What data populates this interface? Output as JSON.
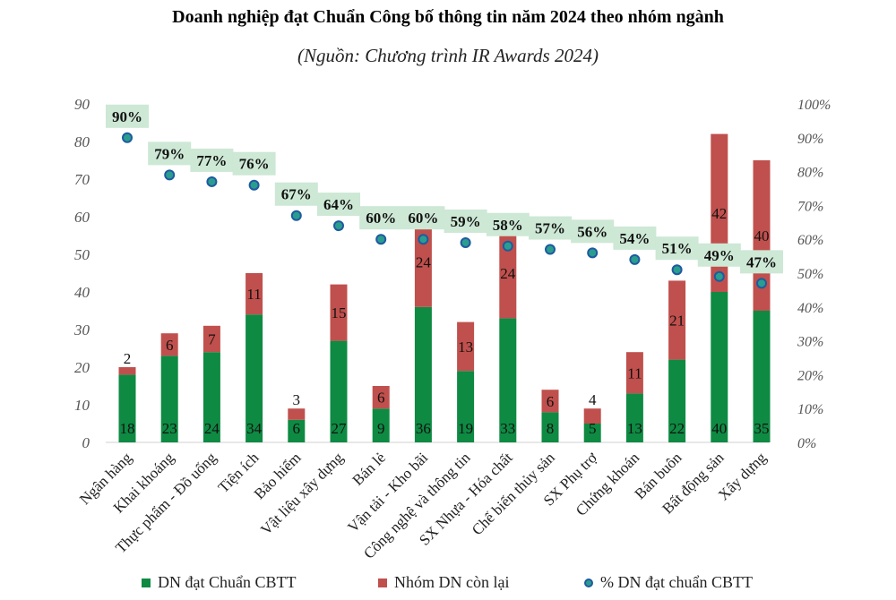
{
  "title": "Doanh nghiệp đạt Chuẩn Công bố thông tin năm 2024 theo nhóm ngành",
  "subtitle": "(Nguồn: Chương trình IR Awards 2024)",
  "colors": {
    "achieved": "#0e8a43",
    "remaining": "#c0504d",
    "dot_fill": "#2a9d8f",
    "dot_border": "#1e5aa0",
    "label_box": "#cde8d5"
  },
  "chart_data": {
    "type": "bar",
    "stacked": true,
    "categories": [
      "Ngân hàng",
      "Khai khoáng",
      "Thực phẩm - Đồ uống",
      "Tiện ích",
      "Bảo hiểm",
      "Vật liệu xây dựng",
      "Bán lẻ",
      "Vận tải - Kho bãi",
      "Công nghệ và thông tin",
      "SX Nhựa - Hóa chất",
      "Chế biến thủy sản",
      "SX Phụ trợ",
      "Chứng khoán",
      "Bán buôn",
      "Bất động sản",
      "Xây dựng"
    ],
    "series": [
      {
        "name": "DN đạt Chuẩn CBTT",
        "values": [
          18,
          23,
          24,
          34,
          6,
          27,
          9,
          36,
          19,
          33,
          8,
          5,
          13,
          22,
          40,
          35
        ]
      },
      {
        "name": "Nhóm DN còn lại",
        "values": [
          2,
          6,
          7,
          11,
          3,
          15,
          6,
          24,
          13,
          24,
          6,
          4,
          11,
          21,
          42,
          40
        ]
      },
      {
        "name": "% DN đạt chuẩn CBTT",
        "axis": "right",
        "type": "scatter",
        "values": [
          90,
          79,
          77,
          76,
          67,
          64,
          60,
          60,
          59,
          58,
          57,
          56,
          54,
          51,
          49,
          47
        ]
      }
    ],
    "y_left": {
      "min": 0,
      "max": 90,
      "ticks": [
        0,
        10,
        20,
        30,
        40,
        50,
        60,
        70,
        80,
        90
      ]
    },
    "y_right": {
      "min": 0,
      "max": 100,
      "ticks": [
        "0%",
        "10%",
        "20%",
        "30%",
        "40%",
        "50%",
        "60%",
        "70%",
        "80%",
        "90%",
        "100%"
      ]
    },
    "legend_position": "bottom",
    "grid": false
  }
}
